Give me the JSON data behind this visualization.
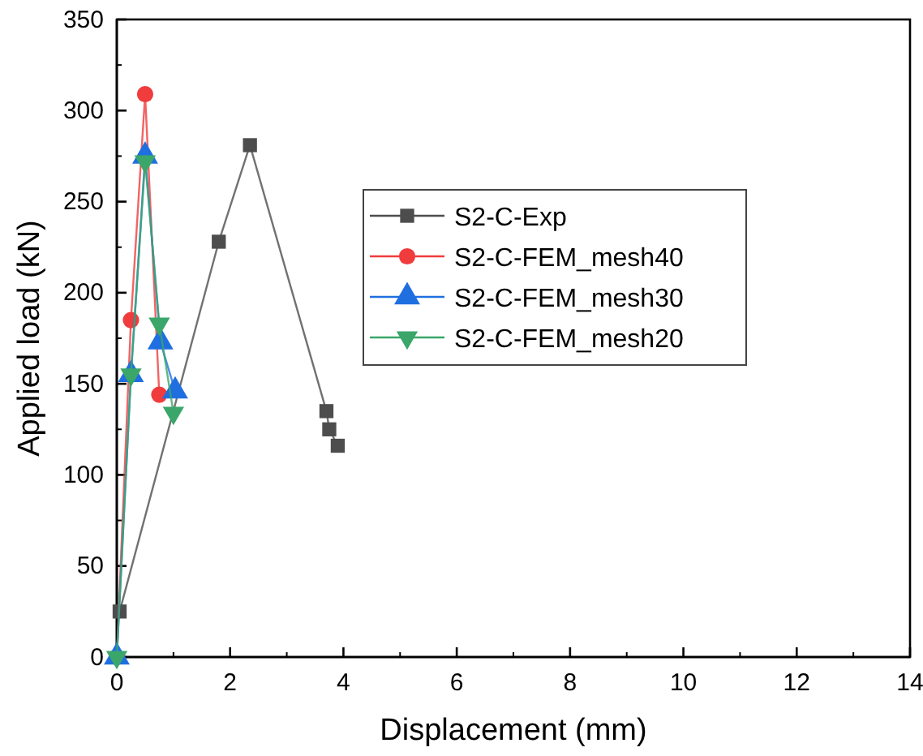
{
  "chart_data": {
    "type": "line",
    "xlabel": "Displacement (mm)",
    "ylabel": "Applied load (kN)",
    "xlim": [
      0,
      14
    ],
    "xticks": [
      0,
      2,
      4,
      6,
      8,
      10,
      12,
      14
    ],
    "ylim": [
      0,
      350
    ],
    "yticks": [
      0,
      50,
      100,
      150,
      200,
      250,
      300,
      350
    ],
    "grid": false,
    "legend": "right",
    "series": [
      {
        "name": "S2-C-Exp",
        "color": "#4d4d4d",
        "marker": "square",
        "x": [
          0.05,
          1.8,
          2.35,
          3.7,
          3.75,
          3.9
        ],
        "values": [
          25,
          228,
          281,
          135,
          125,
          116
        ]
      },
      {
        "name": "S2-C-FEM_mesh40",
        "color": "#f03c3c",
        "marker": "circle",
        "x": [
          0,
          0.25,
          0.5,
          0.75
        ],
        "values": [
          0,
          185,
          309,
          144
        ]
      },
      {
        "name": "S2-C-FEM_mesh30",
        "color": "#1f6fe0",
        "marker": "triangle",
        "x": [
          0,
          0.25,
          0.5,
          0.77,
          1.03
        ],
        "values": [
          0,
          155,
          275,
          173,
          146
        ]
      },
      {
        "name": "S2-C-FEM_mesh20",
        "color": "#3aa66a",
        "marker": "triangle-down",
        "x": [
          0,
          0.25,
          0.5,
          0.75,
          1.0
        ],
        "values": [
          0,
          155,
          272,
          183,
          134
        ]
      }
    ]
  }
}
